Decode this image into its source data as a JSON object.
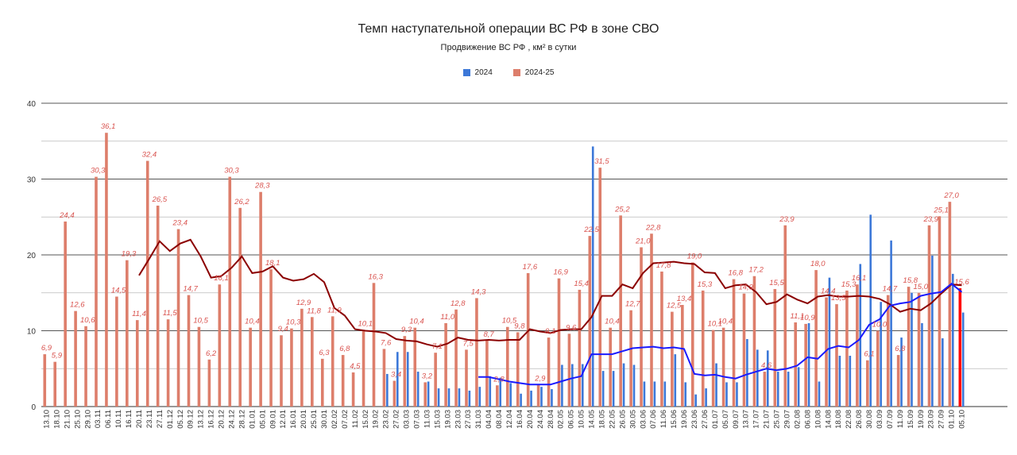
{
  "chart_data": {
    "type": "bar",
    "title": "Темп наступательной операции ВС РФ в зоне СВО",
    "subtitle": "Продвижение ВС РФ , км² в сутки",
    "ylim": [
      0,
      40
    ],
    "yticks": [
      "0",
      "10",
      "20",
      "30",
      "40"
    ],
    "grid": true,
    "legend_position": "top",
    "colors": {
      "series_2024": "#3c78d8",
      "series_2024_25": "#dd7e6b",
      "avg_2024": "#1a1aff",
      "avg_2024_25": "#8b0000",
      "last_bar": "#ff0000",
      "label_text": "#d9534f"
    },
    "categories": [
      "13.10",
      "18.10",
      "21.10",
      "25.10",
      "29.10",
      "03.11",
      "06.11",
      "10.11",
      "16.11",
      "20.11",
      "23.11",
      "27.11",
      "01.12",
      "05.12",
      "09.12",
      "13.12",
      "16.12",
      "20.12",
      "24.12",
      "28.12",
      "01.01",
      "05.01",
      "09.01",
      "12.01",
      "16.01",
      "20.01",
      "25.01",
      "30.01",
      "02.02",
      "07.02",
      "11.02",
      "15.02",
      "19.02",
      "23.02",
      "27.02",
      "03.03",
      "07.03",
      "11.03",
      "15.03",
      "19.03",
      "23.03",
      "27.03",
      "31.03",
      "04.04",
      "08.04",
      "12.04",
      "16.04",
      "20.04",
      "24.04",
      "28.04",
      "02.05",
      "06.05",
      "10.05",
      "14.05",
      "18.05",
      "22.05",
      "26.05",
      "30.05",
      "03.06",
      "07.06",
      "11.06",
      "15.06",
      "19.06",
      "23.06",
      "27.06",
      "01.07",
      "05.07",
      "09.07",
      "13.07",
      "17.07",
      "21.07",
      "25.07",
      "29.07",
      "02.08",
      "06.08",
      "10.08",
      "14.08",
      "18.08",
      "22.08",
      "26.08",
      "30.08",
      "03.09",
      "07.09",
      "11.09",
      "15.09",
      "19.09",
      "23.09",
      "27.09",
      "01.10",
      "05.10"
    ],
    "series": [
      {
        "name": "2024",
        "values": [
          null,
          null,
          null,
          null,
          null,
          null,
          null,
          null,
          null,
          null,
          null,
          null,
          null,
          null,
          null,
          null,
          null,
          null,
          null,
          null,
          null,
          null,
          null,
          null,
          null,
          null,
          null,
          null,
          null,
          null,
          null,
          null,
          null,
          4.3,
          7.2,
          7.2,
          4.6,
          3.3,
          2.4,
          2.4,
          2.4,
          2.1,
          2.6,
          4.0,
          3.8,
          3.1,
          1.7,
          2.1,
          2.6,
          2.3,
          5.5,
          5.6,
          5.6,
          34.3,
          4.7,
          4.7,
          5.7,
          5.5,
          3.3,
          3.3,
          3.3,
          6.9,
          3.2,
          1.6,
          2.4,
          5.7,
          3.2,
          3.2,
          8.9,
          7.5,
          7.4,
          4.6,
          4.6,
          5.2,
          11.0,
          3.3,
          17.0,
          6.7,
          6.7,
          18.8,
          25.3,
          13.8,
          21.9,
          9.1,
          15.0,
          11.0,
          19.9,
          9.0,
          17.5,
          12.4
        ]
      },
      {
        "name": "2024-25",
        "values": [
          6.9,
          5.9,
          24.4,
          12.6,
          10.6,
          30.3,
          36.1,
          14.5,
          19.3,
          11.4,
          32.4,
          26.5,
          11.5,
          23.4,
          14.7,
          10.5,
          6.2,
          16.1,
          30.3,
          26.2,
          10.4,
          28.3,
          18.1,
          9.4,
          10.3,
          12.9,
          11.8,
          6.3,
          11.9,
          6.8,
          4.5,
          10.1,
          16.3,
          7.6,
          3.4,
          9.3,
          10.4,
          3.2,
          7.1,
          11.0,
          12.8,
          7.5,
          14.3,
          8.7,
          2.8,
          10.5,
          9.8,
          17.6,
          2.9,
          9.1,
          16.9,
          9.6,
          15.4,
          22.5,
          31.5,
          10.4,
          25.2,
          12.7,
          21.0,
          22.8,
          17.8,
          12.5,
          13.4,
          19.0,
          15.3,
          10.1,
          10.4,
          16.8,
          14.9,
          17.2,
          4.6,
          15.5,
          23.9,
          11.1,
          10.9,
          18.0,
          14.4,
          13.5,
          15.3,
          16.1,
          6.1,
          10.0,
          14.7,
          6.8,
          15.8,
          15.0,
          23.9,
          25.1,
          27.0,
          15.6
        ],
        "labels": [
          "6,9",
          "5,9",
          "24,4",
          "12,6",
          "10,6",
          "30,3",
          "36,1",
          "14,5",
          "19,3",
          "11,4",
          "32,4",
          "26,5",
          "11,5",
          "23,4",
          "14,7",
          "10,5",
          "6,2",
          "16,1",
          "30,3",
          "26,2",
          "10,4",
          "28,3",
          "18,1",
          "9,4",
          "10,3",
          "12,9",
          "11,8",
          "6,3",
          "11,9",
          "6,8",
          "4,5",
          "10,1",
          "16,3",
          "7,6",
          "3,4",
          "9,3",
          "10,4",
          "3,2",
          "7,1",
          "11,0",
          "12,8",
          "7,5",
          "14,3",
          "8,7",
          "2,8",
          "10,5",
          "9,8",
          "17,6",
          "2,9",
          "9,1",
          "16,9",
          "9,6",
          "15,4",
          "22,5",
          "31,5",
          "10,4",
          "25,2",
          "12,7",
          "21,0",
          "22,8",
          "17,8",
          "12,5",
          "13,4",
          "19,0",
          "15,3",
          "10,1",
          "10,4",
          "16,8",
          "14,9",
          "17,2",
          "4,6",
          "15,5",
          "23,9",
          "11,1",
          "10,9",
          "18,0",
          "14,4",
          "13,5",
          "15,3",
          "16,1",
          "6,1",
          "10,0",
          "14,7",
          "6,8",
          "15,8",
          "15,0",
          "23,9",
          "25,1",
          "27,0",
          "15,6"
        ]
      }
    ],
    "avg_2024_25": [
      null,
      null,
      null,
      null,
      null,
      null,
      null,
      null,
      null,
      17.3,
      19.5,
      21.8,
      20.5,
      21.5,
      22.0,
      19.8,
      17.0,
      17.2,
      18.3,
      19.8,
      17.6,
      17.8,
      18.5,
      17.0,
      16.6,
      16.8,
      17.5,
      16.4,
      13.0,
      12.0,
      10.2,
      10.0,
      9.9,
      9.7,
      8.9,
      8.7,
      8.6,
      8.2,
      7.9,
      8.3,
      9.1,
      8.8,
      8.7,
      8.8,
      8.7,
      8.8,
      8.8,
      10.2,
      9.9,
      9.7,
      10.1,
      10.2,
      10.2,
      11.8,
      14.6,
      14.6,
      16.1,
      15.6,
      17.6,
      18.9,
      19.0,
      19.1,
      18.9,
      18.8,
      17.7,
      17.6,
      15.6,
      16.0,
      16.1,
      15.1,
      13.5,
      13.8,
      14.8,
      14.1,
      13.6,
      14.5,
      14.7,
      14.5,
      14.5,
      14.6,
      14.5,
      14.2,
      13.5,
      12.5,
      12.9,
      12.7,
      13.6,
      14.9,
      16.1,
      16.0
    ],
    "avg_2024": [
      null,
      null,
      null,
      null,
      null,
      null,
      null,
      null,
      null,
      null,
      null,
      null,
      null,
      null,
      null,
      null,
      null,
      null,
      null,
      null,
      null,
      null,
      null,
      null,
      null,
      null,
      null,
      null,
      null,
      null,
      null,
      null,
      null,
      null,
      null,
      null,
      null,
      null,
      null,
      null,
      null,
      null,
      3.9,
      3.9,
      3.6,
      3.3,
      3.1,
      2.9,
      2.9,
      2.9,
      3.3,
      3.7,
      4.0,
      6.9,
      6.9,
      6.9,
      7.3,
      7.7,
      7.8,
      7.9,
      7.7,
      7.8,
      7.6,
      4.3,
      4.1,
      4.2,
      3.9,
      3.7,
      4.2,
      4.6,
      5.0,
      4.8,
      5.0,
      5.4,
      6.5,
      6.3,
      7.6,
      8.0,
      7.8,
      8.8,
      10.8,
      11.5,
      13.3,
      13.6,
      13.8,
      14.6,
      14.9,
      15.1,
      16.2,
      15.1
    ]
  }
}
